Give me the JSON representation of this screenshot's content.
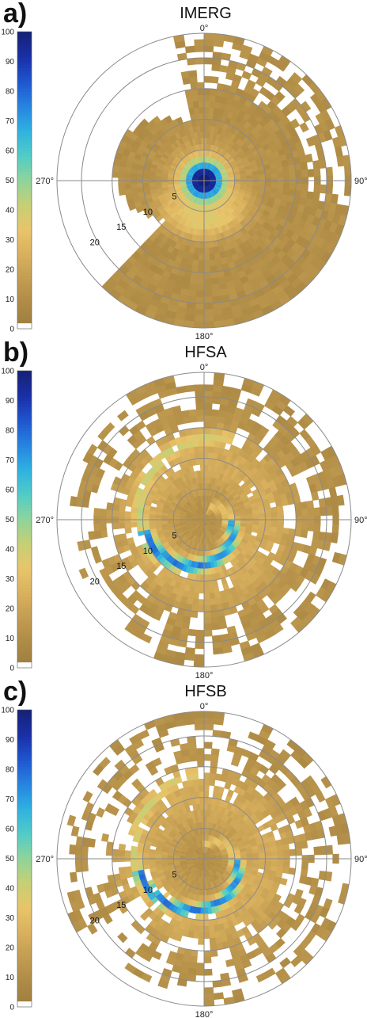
{
  "panels": [
    {
      "letter": "a)",
      "title": "IMERG"
    },
    {
      "letter": "b)",
      "title": "HFSA"
    },
    {
      "letter": "c)",
      "title": "HFSB"
    }
  ],
  "colormap": [
    "#9b7d3f",
    "#ad8a45",
    "#c29c51",
    "#d8b05e",
    "#e8c46a",
    "#c8cf74",
    "#8fd49a",
    "#52ccc6",
    "#2fb2e0",
    "#2784e0",
    "#1f55cf",
    "#1a2fa6",
    "#152276"
  ],
  "chart_data": [
    {
      "type": "heatmap",
      "projection": "polar",
      "title": "IMERG",
      "colorbar": {
        "ticks": [
          0,
          10,
          20,
          30,
          40,
          50,
          60,
          70,
          80,
          90,
          100
        ],
        "range": [
          0,
          100
        ]
      },
      "angular_ticks": [
        "0°",
        "90°",
        "180°",
        "270°"
      ],
      "radial_ticks": [
        "5",
        "10",
        "15",
        "20"
      ],
      "radial_range": [
        0,
        24
      ],
      "grid": true,
      "max_center": {
        "azimuth_deg": 175,
        "radius": 2.5,
        "value": 95
      },
      "rainband": "none"
    },
    {
      "type": "heatmap",
      "projection": "polar",
      "title": "HFSA",
      "colorbar": {
        "ticks": [
          0,
          10,
          20,
          30,
          40,
          50,
          60,
          70,
          80,
          90,
          100
        ],
        "range": [
          0,
          100
        ]
      },
      "angular_ticks": [
        "0°",
        "90°",
        "180°",
        "270°"
      ],
      "radial_ticks": [
        "5",
        "10",
        "15",
        "20"
      ],
      "radial_range": [
        0,
        24
      ],
      "grid": true,
      "max_center": {
        "azimuth_deg": 165,
        "radius": 9,
        "value": 55
      },
      "rainband": "spiral"
    },
    {
      "type": "heatmap",
      "projection": "polar",
      "title": "HFSB",
      "colorbar": {
        "ticks": [
          0,
          10,
          20,
          30,
          40,
          50,
          60,
          70,
          80,
          90,
          100
        ],
        "range": [
          0,
          100
        ]
      },
      "angular_ticks": [
        "0°",
        "90°",
        "180°",
        "270°"
      ],
      "radial_ticks": [
        "5",
        "10",
        "15",
        "20"
      ],
      "radial_range": [
        0,
        24
      ],
      "grid": true,
      "max_center": {
        "azimuth_deg": 150,
        "radius": 5,
        "value": 60
      },
      "rainband": "spiral"
    }
  ]
}
